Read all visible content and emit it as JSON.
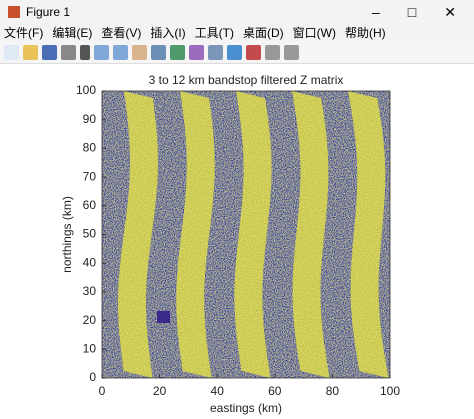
{
  "window": {
    "title": "Figure 1",
    "menu": [
      "文件(F)",
      "编辑(E)",
      "查看(V)",
      "插入(I)",
      "工具(T)",
      "桌面(D)",
      "窗口(W)",
      "帮助(H)"
    ]
  },
  "chart_data": {
    "type": "image",
    "title": "3 to 12 km bandstop filtered Z matrix",
    "x_label": "eastings (km)",
    "y_label": "northings (km)",
    "xlim": [
      0,
      100
    ],
    "ylim": [
      0,
      100
    ],
    "xticks": [
      0,
      20,
      40,
      60,
      80,
      100
    ],
    "yticks": [
      0,
      10,
      20,
      30,
      40,
      50,
      60,
      70,
      80,
      90,
      100
    ],
    "colors": [
      "#2c3f9e",
      "#dcd83a"
    ]
  }
}
